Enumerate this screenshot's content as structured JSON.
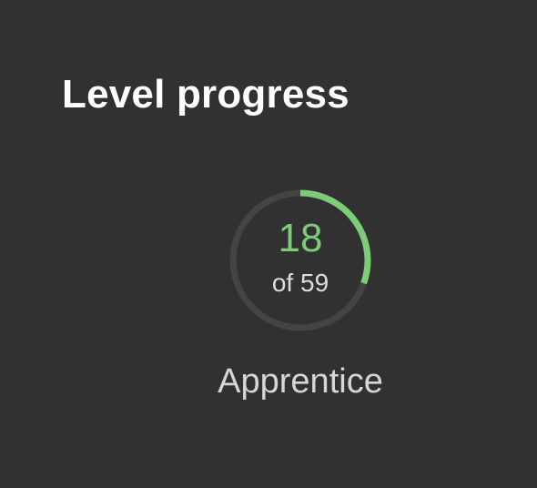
{
  "card": {
    "title": "Level progress"
  },
  "progress": {
    "current": "18",
    "of_text": "of 59",
    "current_value": 18,
    "total_value": 59,
    "fraction": 0.305,
    "rank_label": "Apprentice"
  },
  "colors": {
    "background": "#313131",
    "track": "#444444",
    "accent": "#7ccc78",
    "title": "#ffffff",
    "secondary_text": "#d6d6d6"
  }
}
